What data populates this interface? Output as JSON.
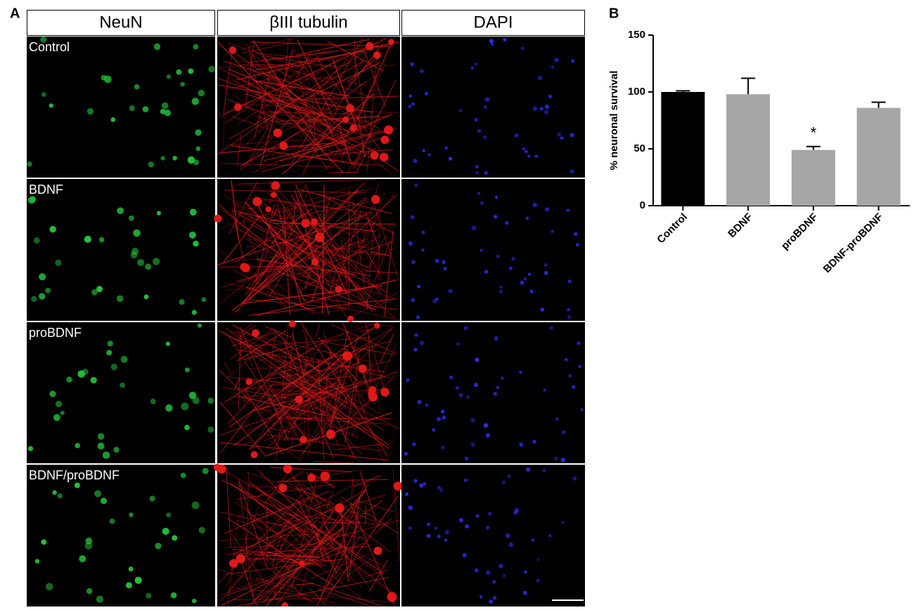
{
  "panel_a": {
    "label": "A",
    "columns": [
      "NeuN",
      "βIII tubulin",
      "DAPI"
    ],
    "rows": [
      "Control",
      "BDNF",
      "proBDNF",
      "BDNF/proBDNF"
    ]
  },
  "chart_data": {
    "type": "bar",
    "panel_label": "B",
    "y_label": "% neuronal survival",
    "categories": [
      "Control",
      "BDNF",
      "proBDNF",
      "BDNF-proBDNF"
    ],
    "values": [
      100,
      98,
      49,
      86
    ],
    "errors": [
      1,
      14,
      3,
      5
    ],
    "colors": [
      "#000000",
      "#a6a6a6",
      "#a6a6a6",
      "#a6a6a6"
    ],
    "ylim": [
      0,
      150
    ],
    "yticks": [
      0,
      50,
      100,
      150
    ],
    "annotations": [
      {
        "text": "*",
        "category": "proBDNF"
      }
    ]
  }
}
